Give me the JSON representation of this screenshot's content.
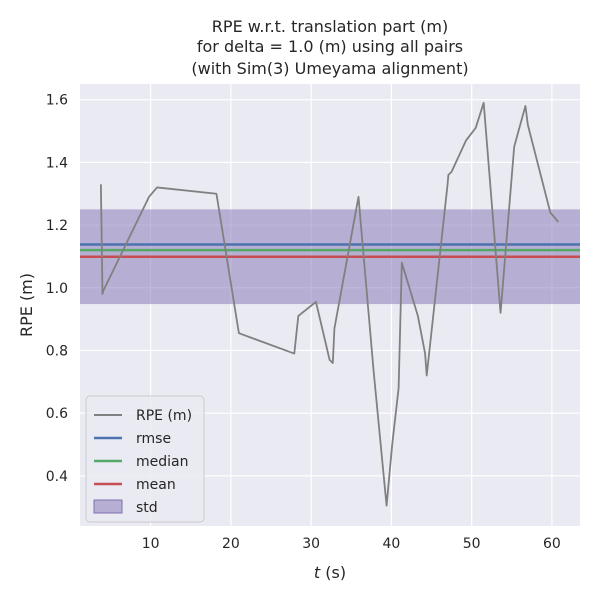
{
  "chart_data": {
    "type": "line",
    "title_lines": [
      "RPE w.r.t. translation part (m)",
      "for delta = 1.0 (m) using all pairs",
      "(with Sim(3) Umeyama alignment)"
    ],
    "xlabel_var": "t",
    "xlabel_unit": " (s)",
    "ylabel": "RPE (m)",
    "xlim": [
      1.2,
      63.5
    ],
    "ylim": [
      0.24,
      1.65
    ],
    "x_ticks": [
      10,
      20,
      30,
      40,
      50,
      60
    ],
    "y_ticks": [
      0.4,
      0.6,
      0.8,
      1.0,
      1.2,
      1.4,
      1.6
    ],
    "x_tick_labels": [
      "10",
      "20",
      "30",
      "40",
      "50",
      "60"
    ],
    "y_tick_labels": [
      "0.4",
      "0.6",
      "0.8",
      "1.0",
      "1.2",
      "1.4",
      "1.6"
    ],
    "grid": true,
    "background": "#eaeaf2",
    "legend_position": "lower-left",
    "series": [
      {
        "name": "RPE (m)",
        "color": "#808080",
        "x": [
          3.8,
          3.9,
          4.0,
          4.1,
          9.8,
          10.8,
          18.2,
          21.0,
          27.9,
          28.4,
          30.6,
          32.3,
          32.7,
          32.9,
          35.9,
          37.8,
          39.4,
          40.1,
          40.9,
          41.3,
          43.3,
          44.2,
          44.4,
          47.0,
          47.1,
          47.5,
          49.3,
          50.5,
          51.5,
          53.6,
          55.3,
          56.7,
          57.0,
          59.8,
          60.8
        ],
        "y": [
          1.33,
          1.16,
          0.98,
          0.99,
          1.29,
          1.32,
          1.3,
          0.855,
          0.79,
          0.91,
          0.955,
          0.77,
          0.76,
          0.87,
          1.29,
          0.73,
          0.305,
          0.5,
          0.68,
          1.08,
          0.91,
          0.79,
          0.72,
          1.33,
          1.36,
          1.37,
          1.47,
          1.51,
          1.59,
          0.92,
          1.45,
          1.58,
          1.52,
          1.24,
          1.21
        ]
      }
    ],
    "stats": [
      {
        "name": "rmse",
        "value": 1.138,
        "color": "#4c72b0"
      },
      {
        "name": "median",
        "value": 1.12,
        "color": "#55a868"
      },
      {
        "name": "mean",
        "value": 1.099,
        "color": "#c44e52"
      }
    ],
    "std": {
      "name": "std",
      "lower": 0.948,
      "upper": 1.25,
      "color": "#8172b3"
    }
  }
}
